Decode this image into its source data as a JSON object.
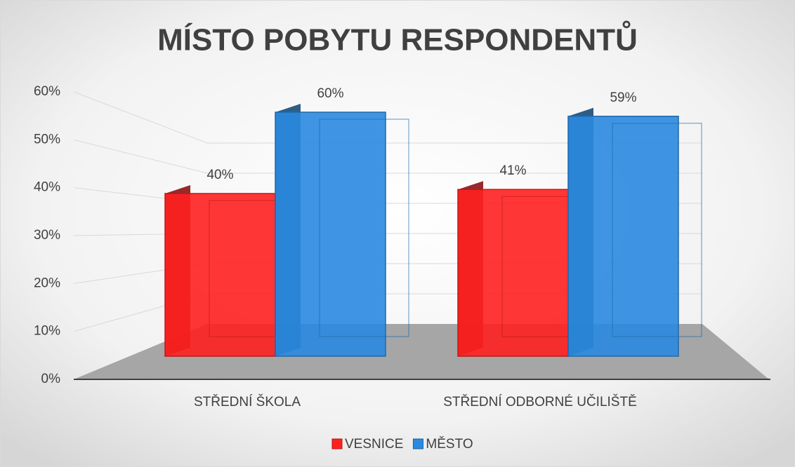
{
  "chart_data": {
    "type": "bar3d",
    "title": "MÍSTO POBYTU RESPONDENTŮ",
    "categories": [
      "STŘEDNÍ ŠKOLA",
      "STŘEDNÍ ODBORNÉ UČILIŠTĚ"
    ],
    "series": [
      {
        "name": "VESNICE",
        "color": "#ff2020",
        "values": [
          40,
          41
        ],
        "value_labels": [
          "40%",
          "41%"
        ]
      },
      {
        "name": "MĚSTO",
        "color": "#2a8ae0",
        "values": [
          60,
          59
        ],
        "value_labels": [
          "60%",
          "59%"
        ]
      }
    ],
    "ylim": [
      0,
      60
    ],
    "yticks": [
      {
        "value": 0,
        "label": "0%"
      },
      {
        "value": 10,
        "label": "10%"
      },
      {
        "value": 20,
        "label": "20%"
      },
      {
        "value": 30,
        "label": "30%"
      },
      {
        "value": 40,
        "label": "40%"
      },
      {
        "value": 50,
        "label": "50%"
      },
      {
        "value": 60,
        "label": "60%"
      }
    ],
    "grid": true,
    "legend": "bottom"
  }
}
